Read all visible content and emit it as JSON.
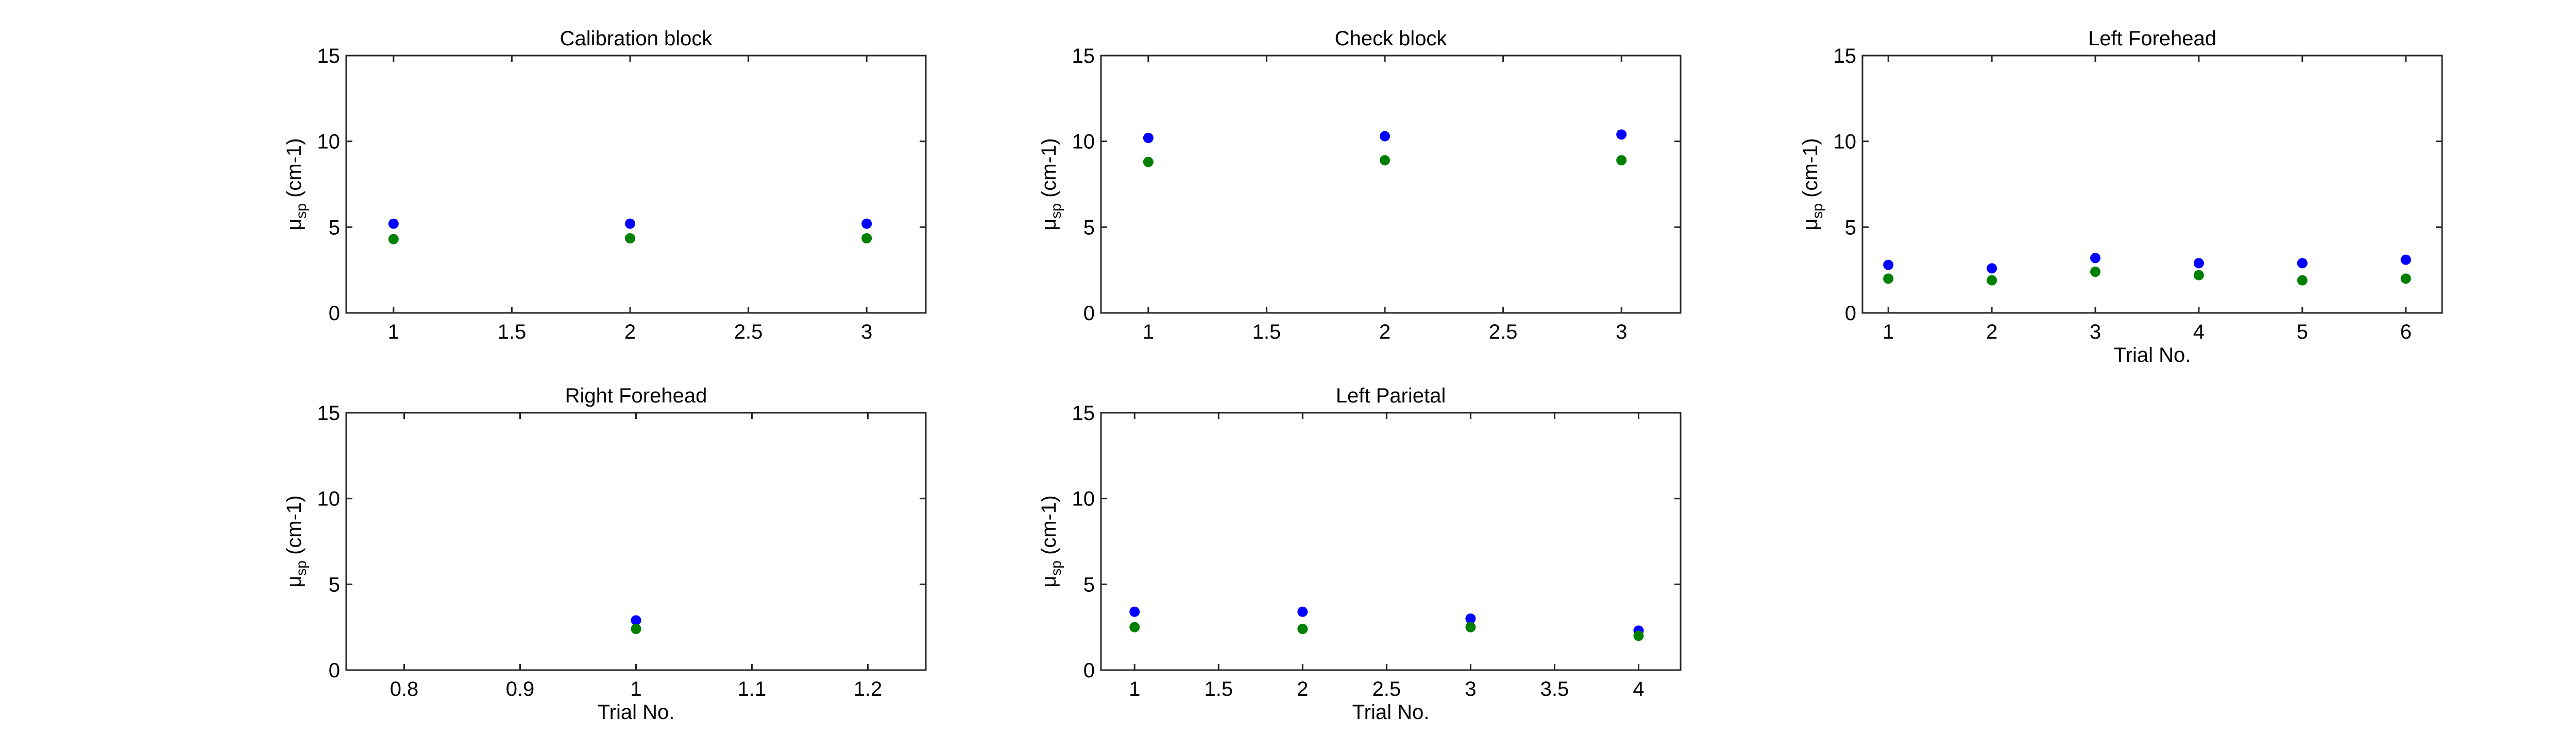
{
  "chart_data": [
    {
      "type": "scatter",
      "title": "Calibration block",
      "xlabel": "",
      "ylabel": {
        "symbol": "μ",
        "subscript": "sp",
        "unit": "(cm-1)"
      },
      "xlim": [
        0.8,
        3.25
      ],
      "ylim": [
        0,
        15
      ],
      "xticks": [
        "1",
        "1.5",
        "2",
        "2.5",
        "3"
      ],
      "xtick_values": [
        1,
        1.5,
        2,
        2.5,
        3
      ],
      "yticks": [
        "0",
        "5",
        "10",
        "15"
      ],
      "ytick_values": [
        0,
        5,
        10,
        15
      ],
      "grid": true,
      "series": [
        {
          "color": "#0000ff",
          "x": [
            1,
            2,
            3
          ],
          "y": [
            5.2,
            5.2,
            5.2
          ]
        },
        {
          "color": "#008000",
          "x": [
            1,
            2,
            3
          ],
          "y": [
            4.3,
            4.35,
            4.35
          ]
        }
      ]
    },
    {
      "type": "scatter",
      "title": "Check block",
      "xlabel": "",
      "ylabel": {
        "symbol": "μ",
        "subscript": "sp",
        "unit": "(cm-1)"
      },
      "xlim": [
        0.8,
        3.25
      ],
      "ylim": [
        0,
        15
      ],
      "xticks": [
        "1",
        "1.5",
        "2",
        "2.5",
        "3"
      ],
      "xtick_values": [
        1,
        1.5,
        2,
        2.5,
        3
      ],
      "yticks": [
        "0",
        "5",
        "10",
        "15"
      ],
      "ytick_values": [
        0,
        5,
        10,
        15
      ],
      "grid": true,
      "series": [
        {
          "color": "#0000ff",
          "x": [
            1,
            2,
            3
          ],
          "y": [
            10.2,
            10.3,
            10.4
          ]
        },
        {
          "color": "#008000",
          "x": [
            1,
            2,
            3
          ],
          "y": [
            8.8,
            8.9,
            8.9
          ]
        }
      ]
    },
    {
      "type": "scatter",
      "title": "Left Forehead",
      "xlabel": "Trial No.",
      "ylabel": {
        "symbol": "μ",
        "subscript": "sp",
        "unit": "(cm-1)"
      },
      "xlim": [
        0.75,
        6.35
      ],
      "ylim": [
        0,
        15
      ],
      "xticks": [
        "1",
        "2",
        "3",
        "4",
        "5",
        "6"
      ],
      "xtick_values": [
        1,
        2,
        3,
        4,
        5,
        6
      ],
      "yticks": [
        "0",
        "5",
        "10",
        "15"
      ],
      "ytick_values": [
        0,
        5,
        10,
        15
      ],
      "grid": true,
      "series": [
        {
          "color": "#0000ff",
          "x": [
            1,
            2,
            3,
            4,
            5,
            6
          ],
          "y": [
            2.8,
            2.6,
            3.2,
            2.9,
            2.9,
            3.1
          ]
        },
        {
          "color": "#008000",
          "x": [
            1,
            2,
            3,
            4,
            5,
            6
          ],
          "y": [
            2.0,
            1.9,
            2.4,
            2.2,
            1.9,
            2.0
          ]
        }
      ]
    },
    {
      "type": "scatter",
      "title": "Right Forehead",
      "xlabel": "Trial No.",
      "ylabel": {
        "symbol": "μ",
        "subscript": "sp",
        "unit": "(cm-1)"
      },
      "xlim": [
        0.75,
        1.25
      ],
      "ylim": [
        0,
        15
      ],
      "xticks": [
        "0.8",
        "0.9",
        "1",
        "1.1",
        "1.2"
      ],
      "xtick_values": [
        0.8,
        0.9,
        1,
        1.1,
        1.2
      ],
      "yticks": [
        "0",
        "5",
        "10",
        "15"
      ],
      "ytick_values": [
        0,
        5,
        10,
        15
      ],
      "grid": true,
      "series": [
        {
          "color": "#0000ff",
          "x": [
            1
          ],
          "y": [
            2.9
          ]
        },
        {
          "color": "#008000",
          "x": [
            1
          ],
          "y": [
            2.4
          ]
        }
      ]
    },
    {
      "type": "scatter",
      "title": "Left Parietal",
      "xlabel": "Trial No.",
      "ylabel": {
        "symbol": "μ",
        "subscript": "sp",
        "unit": "(cm-1)"
      },
      "xlim": [
        0.8,
        4.25
      ],
      "ylim": [
        0,
        15
      ],
      "xticks": [
        "1",
        "1.5",
        "2",
        "2.5",
        "3",
        "3.5",
        "4"
      ],
      "xtick_values": [
        1,
        1.5,
        2,
        2.5,
        3,
        3.5,
        4
      ],
      "yticks": [
        "0",
        "5",
        "10",
        "15"
      ],
      "ytick_values": [
        0,
        5,
        10,
        15
      ],
      "grid": true,
      "series": [
        {
          "color": "#0000ff",
          "x": [
            1,
            2,
            3,
            4
          ],
          "y": [
            3.4,
            3.4,
            3.0,
            2.3
          ]
        },
        {
          "color": "#008000",
          "x": [
            1,
            2,
            3,
            4
          ],
          "y": [
            2.5,
            2.4,
            2.5,
            2.0
          ]
        }
      ]
    }
  ]
}
